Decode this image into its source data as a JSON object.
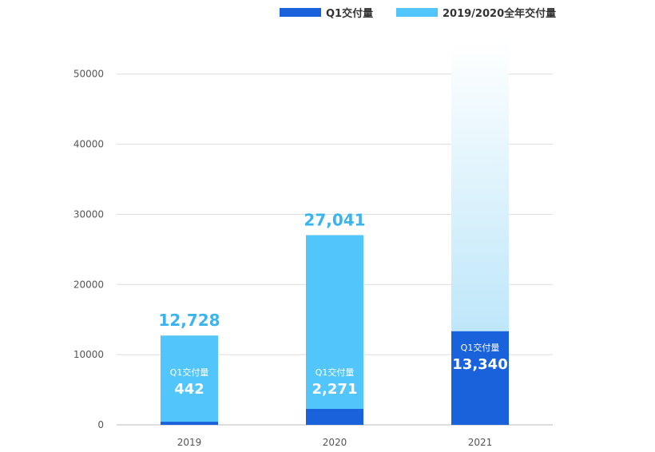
{
  "colors": {
    "q1": "#1a62dc",
    "full": "#52c5fa",
    "full_label": "#3ab4ee",
    "grid": "#dddddd",
    "faded_top": "#ffffff",
    "faded_bottom": "#a9dff8"
  },
  "legend": {
    "q1_label": "Q1交付量",
    "full_label": "2019/2020全年交付量"
  },
  "chart_data": {
    "type": "bar",
    "categories": [
      "2019",
      "2020",
      "2021"
    ],
    "series": [
      {
        "name": "Q1交付量",
        "values": [
          442,
          2271,
          13340
        ],
        "labels": [
          "442",
          "2,271",
          "13,340"
        ]
      },
      {
        "name": "2019/2020全年交付量",
        "values": [
          12728,
          27041,
          null
        ],
        "labels": [
          "12,728",
          "27,041",
          ""
        ]
      }
    ],
    "inner_label": "Q1交付量",
    "yticks": [
      0,
      10000,
      20000,
      30000,
      40000,
      50000
    ],
    "ylim": [
      0,
      56000
    ],
    "grid": true,
    "legend_position": "top",
    "title": "",
    "xlabel": "",
    "ylabel": ""
  }
}
